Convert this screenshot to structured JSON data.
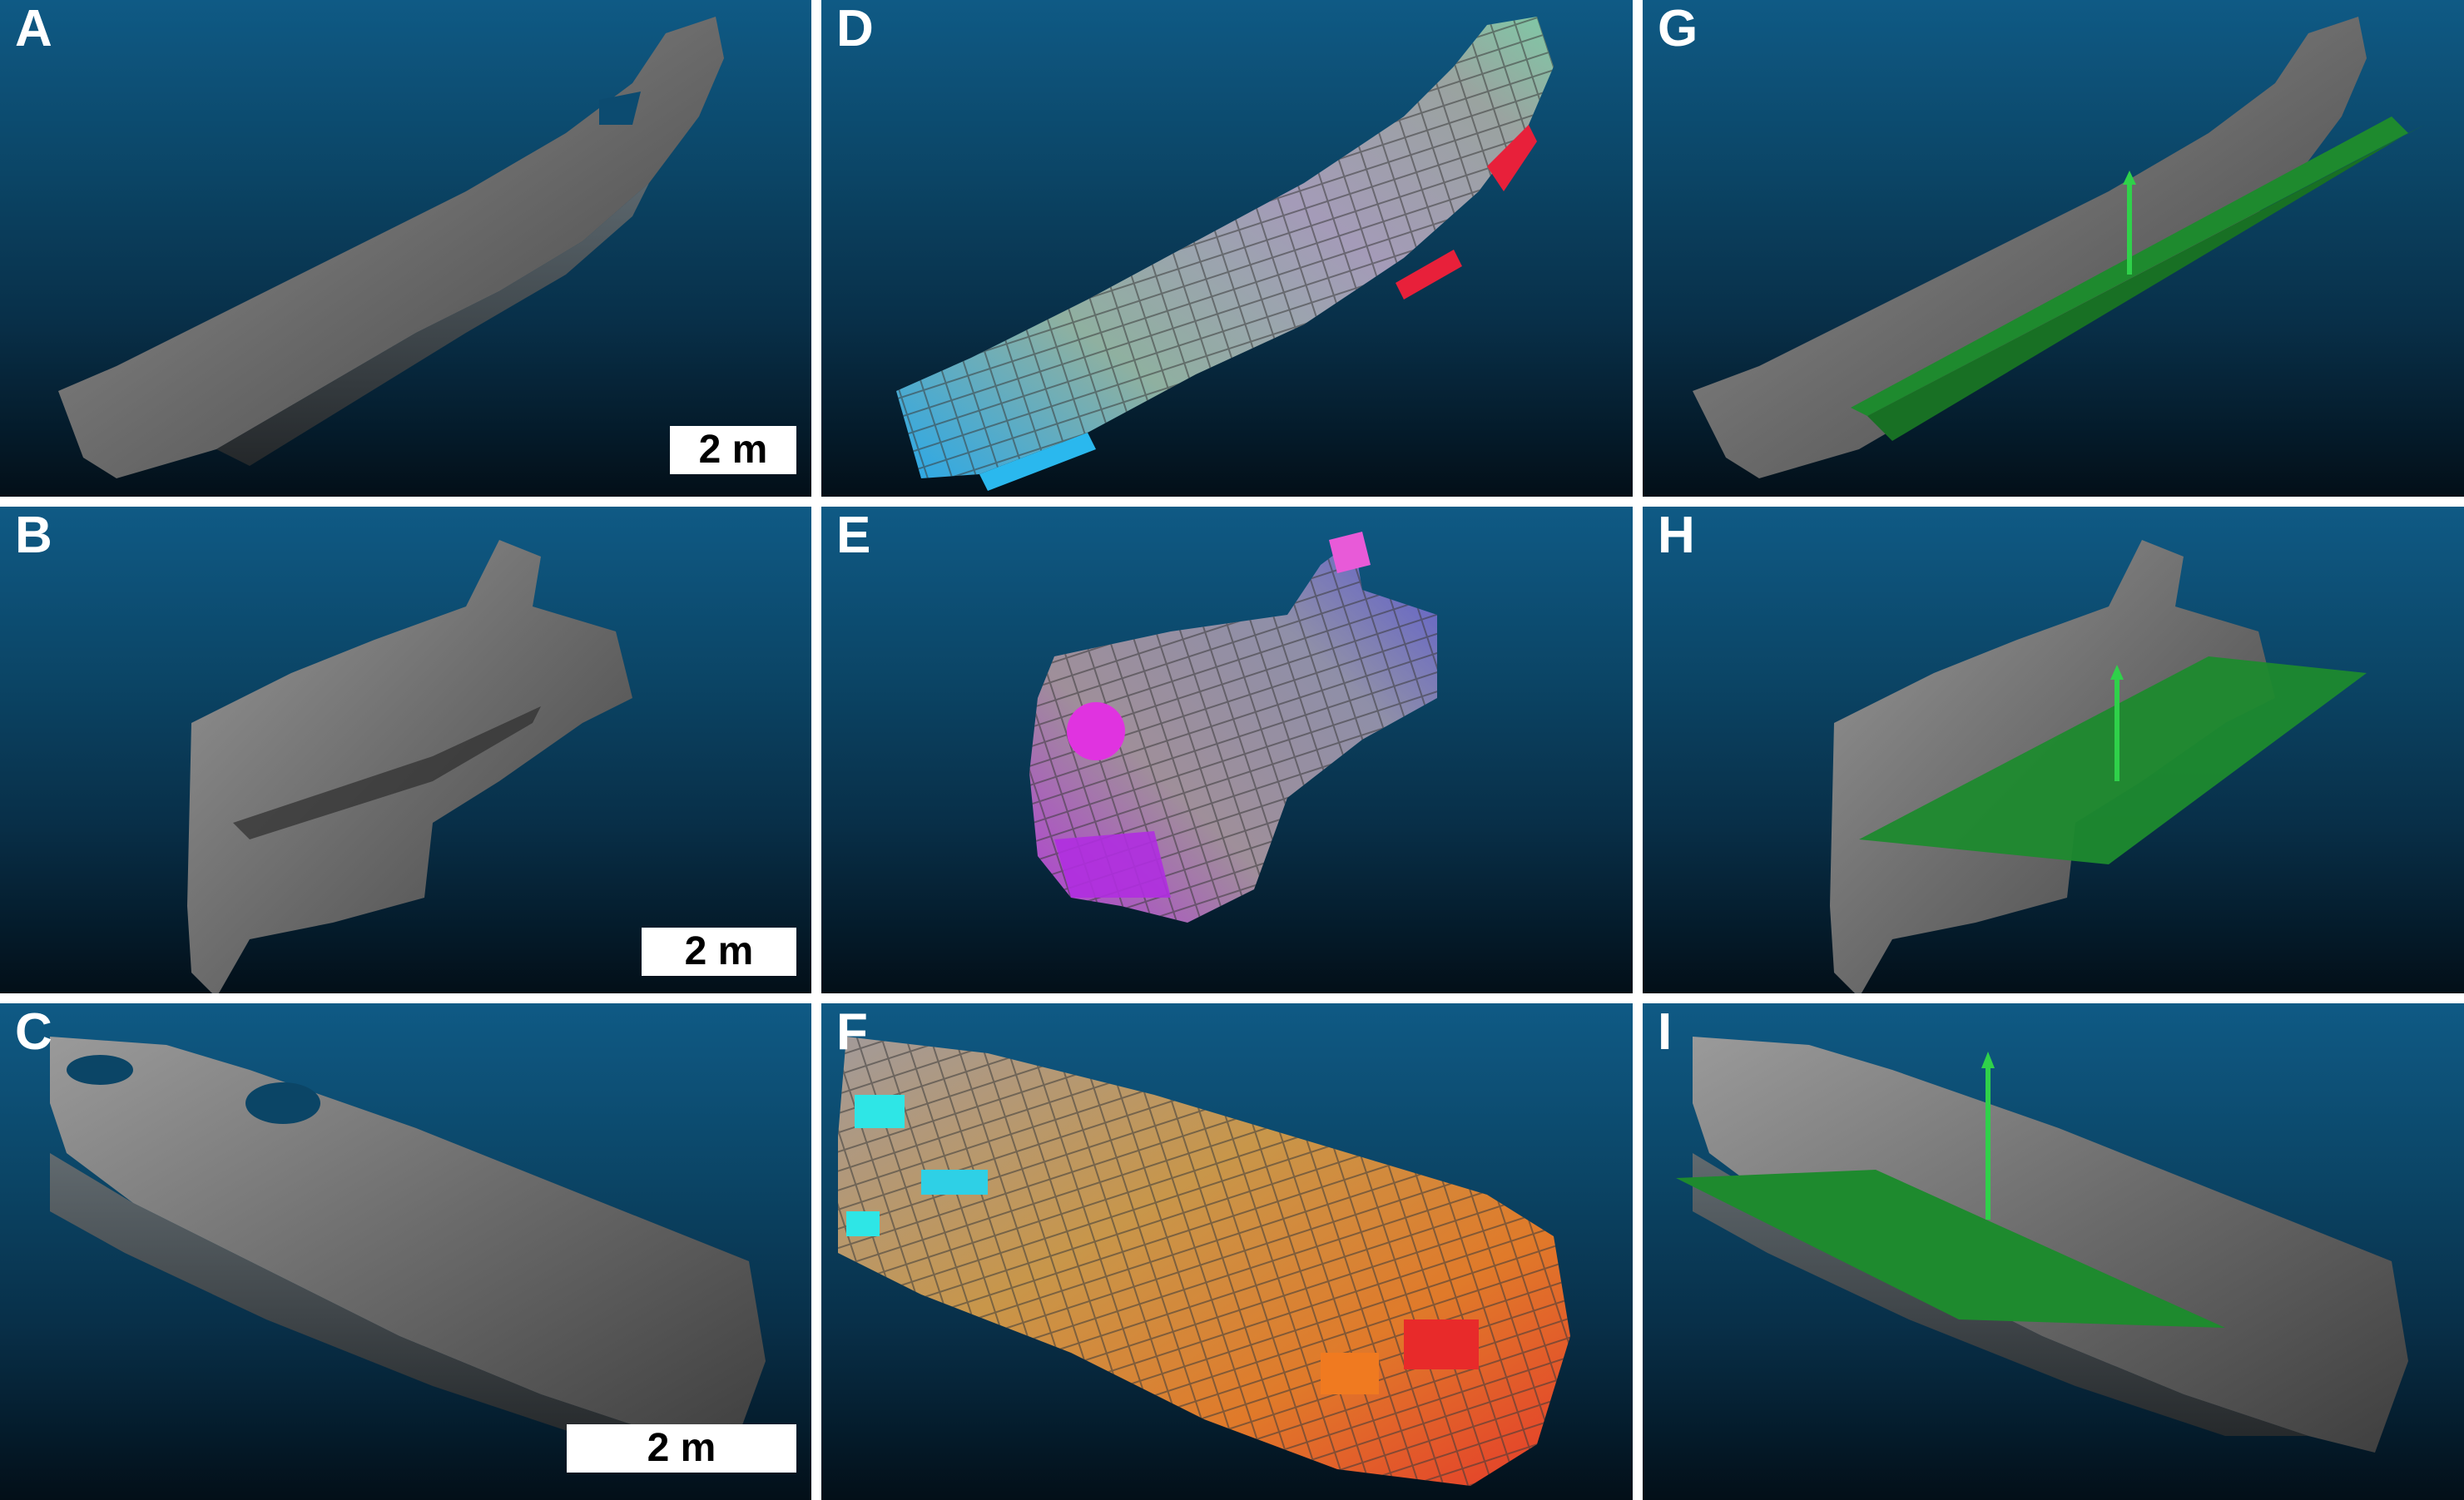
{
  "panels": {
    "A": {
      "label": "A",
      "scale_bar": "2 m"
    },
    "B": {
      "label": "B",
      "scale_bar": "2 m"
    },
    "C": {
      "label": "C",
      "scale_bar": "2 m"
    },
    "D": {
      "label": "D"
    },
    "E": {
      "label": "E"
    },
    "F": {
      "label": "F"
    },
    "G": {
      "label": "G"
    },
    "H": {
      "label": "H"
    },
    "I": {
      "label": "I"
    }
  },
  "colors": {
    "background_top": "#0f5a85",
    "background_bottom": "#030f18",
    "point_cloud": "#7a7a7a",
    "fitted_plane": "#1e8a2e",
    "normal_vector": "#2fd14a"
  }
}
